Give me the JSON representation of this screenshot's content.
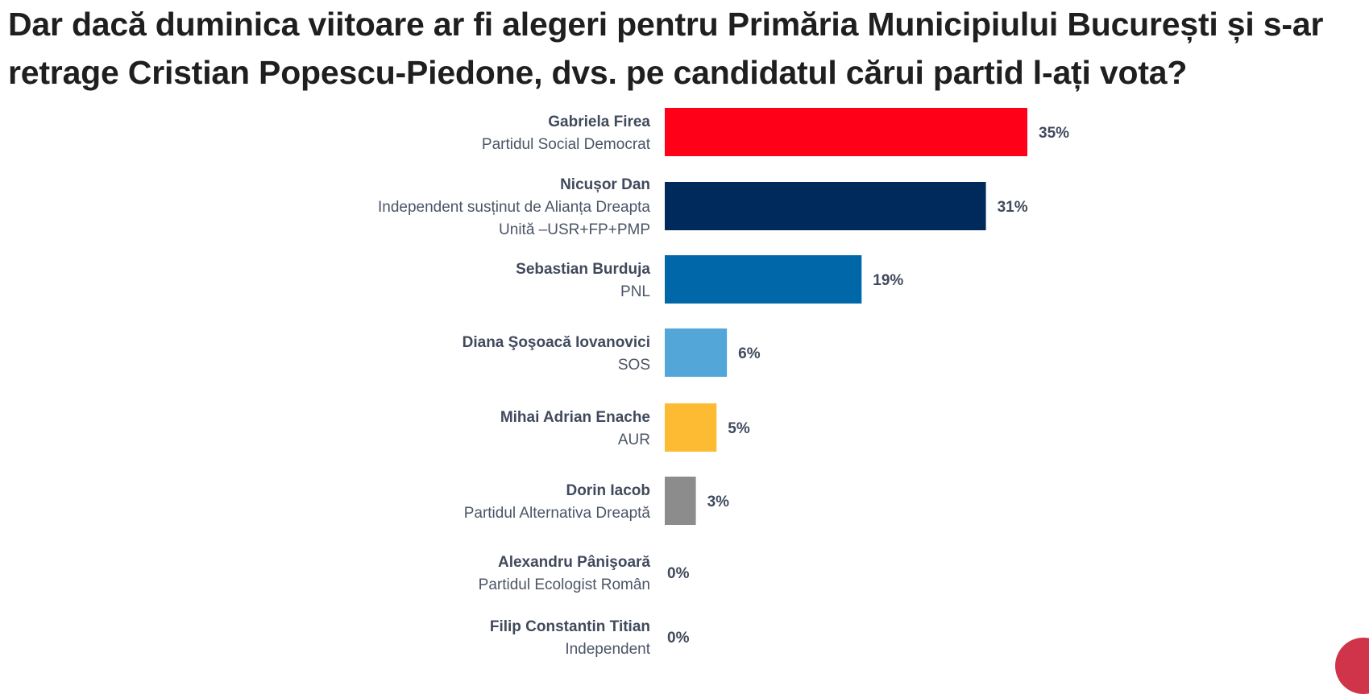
{
  "title": "Dar dacă duminica viitoare ar fi alegeri pentru Primăria Municipiului București și s-ar retrage Cristian Popescu-Piedone, dvs. pe candidatul cărui partid l-ați vota?",
  "chart_data": {
    "type": "bar",
    "orientation": "horizontal",
    "unit": "%",
    "xlim": [
      0,
      35
    ],
    "grid": false,
    "legend": "none",
    "categories": [
      {
        "name": "Gabriela Firea",
        "party": [
          "Partidul Social Democrat"
        ]
      },
      {
        "name": "Nicușor Dan",
        "party": [
          "Independent susținut de Alianța Dreapta",
          "Unită –USR+FP+PMP"
        ]
      },
      {
        "name": "Sebastian Burduja",
        "party": [
          "PNL"
        ]
      },
      {
        "name": "Diana Şoşoacă Iovanovici",
        "party": [
          "SOS"
        ]
      },
      {
        "name": "Mihai Adrian Enache",
        "party": [
          "AUR"
        ]
      },
      {
        "name": "Dorin Iacob",
        "party": [
          "Partidul Alternativa Dreaptă"
        ]
      },
      {
        "name": "Alexandru Pânişoară",
        "party": [
          "Partidul Ecologist Român"
        ]
      },
      {
        "name": "Filip Constantin Titian",
        "party": [
          "Independent"
        ]
      }
    ],
    "values": [
      35,
      31,
      19,
      6,
      5,
      3,
      0,
      0
    ],
    "value_labels": [
      "35%",
      "31%",
      "19%",
      "6%",
      "5%",
      "3%",
      "0%",
      "0%"
    ],
    "colors": [
      "#ff0019",
      "#002a5c",
      "#0068a8",
      "#52a7d8",
      "#fcbb33",
      "#8c8c8c",
      "#8c8c8c",
      "#8c8c8c"
    ]
  }
}
